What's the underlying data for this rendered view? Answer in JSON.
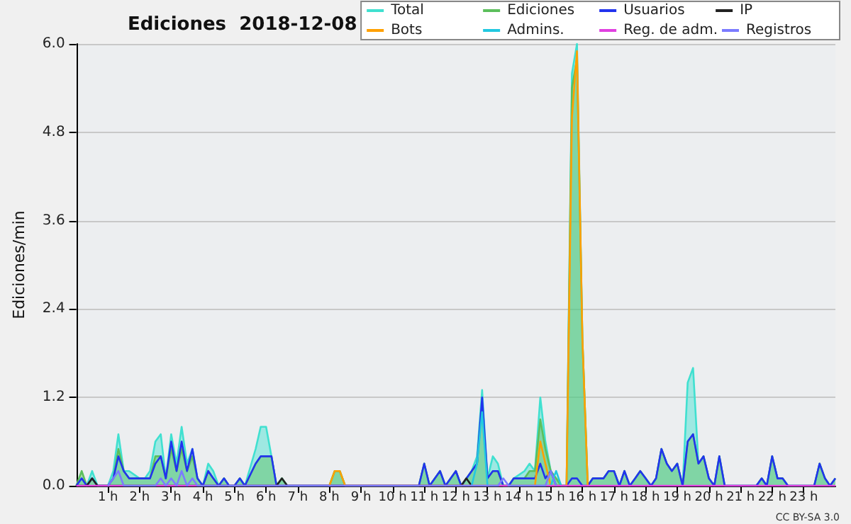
{
  "chart_data": {
    "type": "line",
    "title": "Ediciones  2018-12-08",
    "ylabel": "Ediciones/min",
    "annotations": [
      "CC BY-SA 3.0"
    ],
    "xlim": [
      0,
      24
    ],
    "xticks": [
      {
        "value": 1,
        "label": "1 h"
      },
      {
        "value": 2,
        "label": "2 h"
      },
      {
        "value": 3,
        "label": "3 h"
      },
      {
        "value": 4,
        "label": "4 h"
      },
      {
        "value": 5,
        "label": "5 h"
      },
      {
        "value": 6,
        "label": "6 h"
      },
      {
        "value": 7,
        "label": "7 h"
      },
      {
        "value": 8,
        "label": "8 h"
      },
      {
        "value": 9,
        "label": "9 h"
      },
      {
        "value": 10,
        "label": "10 h"
      },
      {
        "value": 11,
        "label": "11 h"
      },
      {
        "value": 12,
        "label": "12 h"
      },
      {
        "value": 13,
        "label": "13 h"
      },
      {
        "value": 14,
        "label": "14 h"
      },
      {
        "value": 15,
        "label": "15 h"
      },
      {
        "value": 16,
        "label": "16 h"
      },
      {
        "value": 17,
        "label": "17 h"
      },
      {
        "value": 18,
        "label": "18 h"
      },
      {
        "value": 19,
        "label": "19 h"
      },
      {
        "value": 20,
        "label": "20 h"
      },
      {
        "value": 21,
        "label": "21 h"
      },
      {
        "value": 22,
        "label": "22 h"
      },
      {
        "value": 23,
        "label": "23 h"
      }
    ],
    "ylim": [
      0,
      6
    ],
    "yticks": [
      {
        "value": 0,
        "label": "0.0"
      },
      1.2,
      2.4,
      3.6,
      4.8,
      {
        "value": 6,
        "label": "6.0"
      }
    ],
    "grid": "y",
    "legend": "top right",
    "marker": "none",
    "line_style": "solid",
    "series": [
      {
        "name": "Total",
        "type": "area",
        "color": "#40e0d0",
        "x": [
          0,
          0.17,
          0.33,
          0.5,
          0.67,
          1,
          1.17,
          1.33,
          1.5,
          1.67,
          2,
          2.17,
          2.33,
          2.5,
          2.67,
          2.83,
          3,
          3.17,
          3.33,
          3.5,
          3.67,
          3.83,
          4,
          4.17,
          4.33,
          4.5,
          4.67,
          4.83,
          5,
          5.17,
          5.33,
          5.67,
          5.83,
          6,
          6.17,
          6.33,
          6.5,
          6.67,
          8,
          8.17,
          8.33,
          8.5,
          10.83,
          11,
          11.17,
          11.5,
          11.67,
          12,
          12.17,
          12.5,
          12.67,
          12.83,
          13,
          13.17,
          13.33,
          13.5,
          13.67,
          13.83,
          14.17,
          14.33,
          14.5,
          14.67,
          14.83,
          15,
          15.17,
          15.33,
          15.5,
          15.67,
          15.83,
          16,
          16.17,
          16.33,
          16.5,
          16.67,
          16.83,
          17,
          17.17,
          17.33,
          17.5,
          17.67,
          17.83,
          18,
          18.17,
          18.33,
          18.5,
          18.67,
          18.83,
          19,
          19.17,
          19.33,
          19.5,
          19.67,
          19.83,
          20,
          20.17,
          20.33,
          20.5,
          20.67,
          21.5,
          21.67,
          21.83,
          22,
          22.17,
          22.33,
          22.5,
          22.67,
          23.33,
          23.5,
          23.67,
          23.83,
          24
        ],
        "values": [
          0,
          0.1,
          0,
          0.2,
          0,
          0,
          0.2,
          0.7,
          0.2,
          0.2,
          0.1,
          0.1,
          0.2,
          0.6,
          0.7,
          0.1,
          0.7,
          0.3,
          0.8,
          0.3,
          0.5,
          0.1,
          0,
          0.3,
          0.2,
          0,
          0.1,
          0,
          0,
          0.1,
          0,
          0.5,
          0.8,
          0.8,
          0.4,
          0,
          0.1,
          0,
          0,
          0.2,
          0.2,
          0,
          0,
          0.3,
          0,
          0.2,
          0,
          0.2,
          0,
          0.2,
          0.4,
          1.3,
          0.1,
          0.4,
          0.3,
          0,
          0,
          0.1,
          0.2,
          0.3,
          0.2,
          1.2,
          0.6,
          0.2,
          0.1,
          0,
          0,
          5.6,
          6.0,
          2.0,
          0,
          0.1,
          0.1,
          0.1,
          0.2,
          0.2,
          0,
          0.2,
          0,
          0.1,
          0.2,
          0.1,
          0,
          0.1,
          0.5,
          0.3,
          0.2,
          0.3,
          0,
          1.4,
          1.6,
          0.3,
          0.4,
          0.1,
          0,
          0.4,
          0,
          0,
          0,
          0.1,
          0,
          0.4,
          0.1,
          0.1,
          0,
          0,
          0,
          0.3,
          0.1,
          0,
          0.1
        ]
      },
      {
        "name": "Ediciones",
        "type": "area",
        "color": "#5cbf5c",
        "x": [
          0,
          0.17,
          0.33,
          0.5,
          0.67,
          1,
          1.17,
          1.33,
          1.5,
          1.67,
          2,
          2.17,
          2.33,
          2.5,
          2.67,
          2.83,
          3,
          3.17,
          3.33,
          3.5,
          3.67,
          3.83,
          4,
          4.17,
          4.33,
          4.5,
          4.67,
          4.83,
          5,
          5.17,
          5.33,
          5.67,
          5.83,
          6,
          6.17,
          6.33,
          6.5,
          6.67,
          8,
          8.17,
          8.33,
          8.5,
          10.83,
          11,
          11.17,
          11.5,
          11.67,
          12,
          12.17,
          12.5,
          12.67,
          12.83,
          13,
          13.17,
          13.33,
          13.5,
          13.67,
          13.83,
          14.17,
          14.33,
          14.5,
          14.67,
          14.83,
          15,
          15.17,
          15.33,
          15.5,
          15.67,
          15.83,
          16,
          16.17,
          16.33,
          16.5,
          16.67,
          16.83,
          17,
          17.17,
          17.33,
          17.5,
          17.67,
          17.83,
          18,
          18.17,
          18.33,
          18.5,
          18.67,
          18.83,
          19,
          19.17,
          19.33,
          19.5,
          19.67,
          19.83,
          20,
          20.17,
          20.33,
          20.5,
          20.67,
          21.5,
          21.67,
          21.83,
          22,
          22.17,
          22.33,
          22.5,
          22.67,
          23.33,
          23.5,
          23.67,
          23.83,
          24
        ],
        "values": [
          0,
          0.2,
          0,
          0.1,
          0,
          0,
          0.1,
          0.5,
          0.2,
          0.1,
          0.1,
          0.1,
          0.1,
          0.4,
          0.4,
          0.1,
          0.5,
          0.2,
          0.5,
          0.2,
          0.4,
          0.1,
          0,
          0.2,
          0.1,
          0,
          0.1,
          0,
          0,
          0.1,
          0,
          0.3,
          0.4,
          0.4,
          0.4,
          0,
          0.1,
          0,
          0,
          0.2,
          0.2,
          0,
          0,
          0.3,
          0,
          0.2,
          0,
          0.2,
          0,
          0.2,
          0.3,
          1.1,
          0.1,
          0.2,
          0.2,
          0,
          0,
          0.1,
          0.1,
          0.2,
          0.2,
          0.9,
          0.5,
          0.2,
          0.1,
          0,
          0,
          5.4,
          5.8,
          2.0,
          0,
          0.1,
          0.1,
          0.1,
          0.2,
          0.2,
          0,
          0.2,
          0,
          0.1,
          0.2,
          0.1,
          0,
          0.1,
          0.5,
          0.3,
          0.2,
          0.3,
          0,
          0.6,
          0.7,
          0.3,
          0.4,
          0.1,
          0,
          0.4,
          0,
          0,
          0,
          0.1,
          0,
          0.4,
          0.1,
          0.1,
          0,
          0,
          0,
          0.3,
          0.1,
          0,
          0.1
        ]
      },
      {
        "name": "Usuarios",
        "color": "#2233ee",
        "x": [
          0,
          0.17,
          0.33,
          0.5,
          0.67,
          1,
          1.17,
          1.33,
          1.5,
          1.67,
          2,
          2.17,
          2.33,
          2.5,
          2.67,
          2.83,
          3,
          3.17,
          3.33,
          3.5,
          3.67,
          3.83,
          4,
          4.17,
          4.33,
          4.5,
          4.67,
          4.83,
          5,
          5.17,
          5.33,
          5.67,
          5.83,
          6,
          6.17,
          6.33,
          6.5,
          6.67,
          8,
          8.17,
          8.33,
          8.5,
          10.83,
          11,
          11.17,
          11.5,
          11.67,
          12,
          12.17,
          12.5,
          12.67,
          12.83,
          13,
          13.17,
          13.33,
          13.5,
          13.67,
          13.83,
          14.17,
          14.33,
          14.5,
          14.67,
          14.83,
          15,
          15.17,
          15.33,
          15.5,
          15.67,
          15.83,
          16,
          16.17,
          16.33,
          16.5,
          16.67,
          16.83,
          17,
          17.17,
          17.33,
          17.5,
          17.67,
          17.83,
          18,
          18.17,
          18.33,
          18.5,
          18.67,
          18.83,
          19,
          19.17,
          19.33,
          19.5,
          19.67,
          19.83,
          20,
          20.17,
          20.33,
          20.5,
          20.67,
          21.5,
          21.67,
          21.83,
          22,
          22.17,
          22.33,
          22.5,
          22.67,
          23.33,
          23.5,
          23.67,
          23.83,
          24
        ],
        "values": [
          0,
          0.1,
          0,
          0.1,
          0,
          0,
          0.1,
          0.4,
          0.2,
          0.1,
          0.1,
          0.1,
          0.1,
          0.3,
          0.4,
          0.1,
          0.6,
          0.2,
          0.6,
          0.2,
          0.5,
          0.1,
          0,
          0.2,
          0.1,
          0,
          0.1,
          0,
          0,
          0.1,
          0,
          0.3,
          0.4,
          0.4,
          0.4,
          0,
          0,
          0,
          0,
          0,
          0,
          0,
          0,
          0.3,
          0,
          0.2,
          0,
          0.2,
          0,
          0.2,
          0.3,
          1.2,
          0.1,
          0.2,
          0.2,
          0,
          0,
          0.1,
          0.1,
          0.1,
          0.1,
          0.3,
          0.1,
          0.2,
          0,
          0,
          0,
          0.1,
          0.1,
          0,
          0,
          0.1,
          0.1,
          0.1,
          0.2,
          0.2,
          0,
          0.2,
          0,
          0.1,
          0.2,
          0.1,
          0,
          0.1,
          0.5,
          0.3,
          0.2,
          0.3,
          0,
          0.6,
          0.7,
          0.3,
          0.4,
          0.1,
          0,
          0.4,
          0,
          0,
          0,
          0.1,
          0,
          0.4,
          0.1,
          0.1,
          0,
          0,
          0,
          0.3,
          0.1,
          0,
          0.1
        ]
      },
      {
        "name": "IP",
        "color": "#222222",
        "x": [
          0,
          0.33,
          0.5,
          0.67,
          6.33,
          6.5,
          6.67,
          12.17,
          12.33,
          12.5
        ],
        "values": [
          0,
          0,
          0.1,
          0,
          0,
          0.1,
          0,
          0,
          0.1,
          0
        ]
      },
      {
        "name": "Bots",
        "color": "#ffa000",
        "x": [
          8,
          8.17,
          8.33,
          8.5,
          14.5,
          14.67,
          14.83,
          15,
          15.5,
          15.67,
          15.83,
          16,
          16.17
        ],
        "values": [
          0,
          0.2,
          0.2,
          0,
          0,
          0.6,
          0.3,
          0,
          0,
          5.0,
          5.9,
          2.0,
          0
        ]
      },
      {
        "name": "Admins.",
        "color": "#22c8e0",
        "x": [
          12.5,
          12.67,
          12.83,
          13,
          15,
          15.17,
          15.33
        ],
        "values": [
          0,
          0.3,
          1.0,
          0,
          0,
          0.2,
          0
        ]
      },
      {
        "name": "Reg. de adm.",
        "color": "#e040e0",
        "x": [
          0,
          24
        ],
        "values": [
          0,
          0
        ]
      },
      {
        "name": "Registros",
        "color": "#7b7bff",
        "x": [
          1,
          1.17,
          1.33,
          1.5,
          2.5,
          2.67,
          2.83,
          3,
          3.17,
          3.33,
          3.5,
          3.67,
          3.83,
          13.33,
          13.5,
          13.67,
          14.83,
          15,
          15.17
        ],
        "values": [
          0,
          0.1,
          0.2,
          0,
          0,
          0.1,
          0,
          0.1,
          0,
          0.2,
          0,
          0.1,
          0,
          0,
          0.1,
          0,
          0,
          0.2,
          0
        ]
      }
    ]
  }
}
